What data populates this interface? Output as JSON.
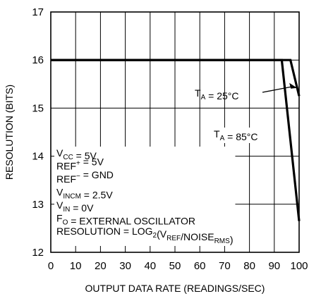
{
  "chart_data": {
    "type": "line",
    "title": "",
    "xlabel": "OUTPUT DATA RATE (READINGS/SEC)",
    "ylabel": "RESOLUTION (BITS)",
    "xlim": [
      0,
      100
    ],
    "ylim": [
      12,
      17
    ],
    "x_ticks": [
      "0",
      "10",
      "20",
      "30",
      "40",
      "50",
      "60",
      "70",
      "80",
      "90",
      "100"
    ],
    "y_ticks": [
      "12",
      "13",
      "14",
      "15",
      "16",
      "17"
    ],
    "grid": true,
    "series": [
      {
        "name": "TA = 25°C",
        "points": [
          [
            0,
            16
          ],
          [
            96.5,
            16
          ],
          [
            100,
            15.25
          ]
        ]
      },
      {
        "name": "TA = 85°C",
        "points": [
          [
            0,
            16
          ],
          [
            93,
            16
          ],
          [
            100,
            12.65
          ]
        ]
      }
    ],
    "series_labels": [
      {
        "main": "T",
        "sub": "A",
        "rest": " = 25°C"
      },
      {
        "main": "T",
        "sub": "A",
        "rest": " = 85°C"
      }
    ],
    "conditions": [
      [
        {
          "t": "V"
        },
        {
          "t": "CC",
          "s": "sub"
        },
        {
          "t": " = 5V"
        }
      ],
      [
        {
          "t": "REF"
        },
        {
          "t": "+",
          "s": "sup"
        },
        {
          "t": " = 5V"
        }
      ],
      [
        {
          "t": "REF"
        },
        {
          "t": "−",
          "s": "sup"
        },
        {
          "t": " = GND"
        }
      ],
      [
        {
          "t": "V"
        },
        {
          "t": "INCM",
          "s": "sub"
        },
        {
          "t": " = 2.5V"
        }
      ],
      [
        {
          "t": "V"
        },
        {
          "t": "IN",
          "s": "sub"
        },
        {
          "t": " = 0V"
        }
      ],
      [
        {
          "t": "F"
        },
        {
          "t": "O",
          "s": "sub"
        },
        {
          "t": " = EXTERNAL OSCILLATOR"
        }
      ],
      [
        {
          "t": "RESOLUTION = LOG"
        },
        {
          "t": "2",
          "s": "sub"
        },
        {
          "t": "(V"
        },
        {
          "t": "REF",
          "s": "sub"
        },
        {
          "t": "/NOISE"
        },
        {
          "t": "RMS",
          "s": "sub"
        },
        {
          "t": ")"
        }
      ]
    ]
  }
}
